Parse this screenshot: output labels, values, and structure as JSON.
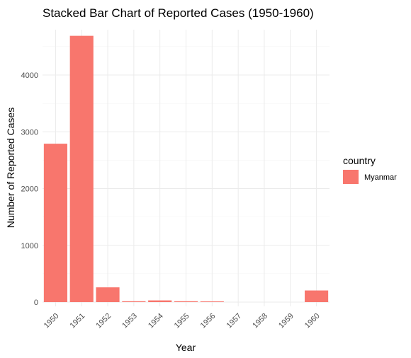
{
  "chart_data": {
    "type": "bar",
    "title": "Stacked Bar Chart of Reported Cases (1950-1960)",
    "xlabel": "Year",
    "ylabel": "Number of Reported Cases",
    "categories": [
      "1950",
      "1951",
      "1952",
      "1953",
      "1954",
      "1955",
      "1956",
      "1957",
      "1958",
      "1959",
      "1960"
    ],
    "series": [
      {
        "name": "Myanmar",
        "values": [
          2790,
          4690,
          260,
          15,
          30,
          15,
          12,
          0,
          0,
          0,
          205
        ]
      }
    ],
    "y_ticks": [
      0,
      1000,
      2000,
      3000,
      4000
    ],
    "ylim": [
      0,
      4930
    ],
    "grid": true,
    "legend": {
      "title": "country",
      "position": "right"
    },
    "colors": {
      "bar": "#f8766d"
    },
    "x_tick_rotation": "45"
  }
}
